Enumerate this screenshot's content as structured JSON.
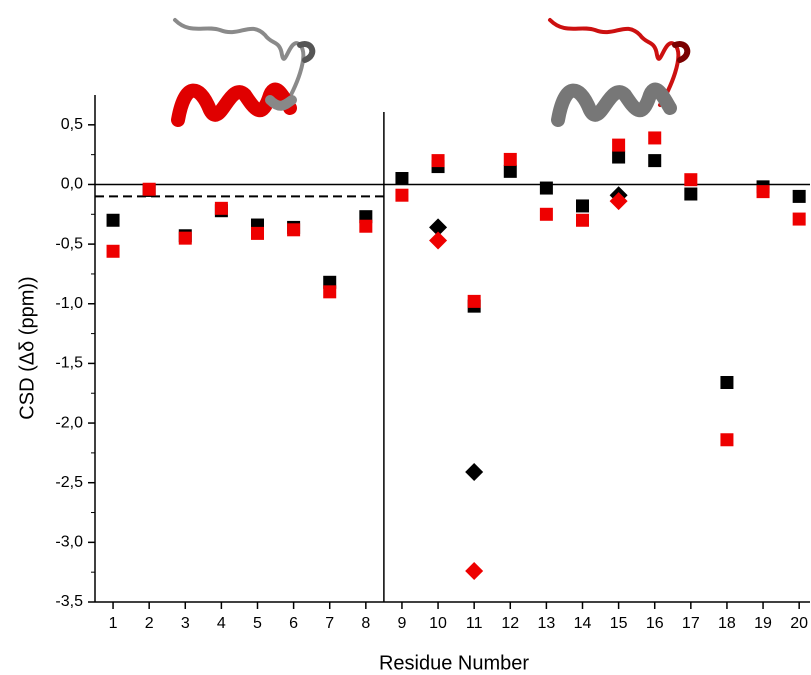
{
  "chart_data": {
    "type": "scatter",
    "x_label": "Residue Number",
    "y_label": "CSD (Δδ (ppm))",
    "x": [
      1,
      2,
      3,
      4,
      5,
      6,
      7,
      8,
      9,
      10,
      11,
      12,
      13,
      14,
      15,
      16,
      17,
      18,
      19,
      20
    ],
    "series": [
      {
        "color": "#000000",
        "marker": "square",
        "values": [
          -0.3,
          -0.05,
          -0.43,
          -0.22,
          -0.34,
          -0.36,
          -0.82,
          -0.27,
          0.05,
          0.15,
          -1.02,
          0.11,
          -0.03,
          -0.18,
          0.23,
          0.2,
          -0.08,
          -1.66,
          -0.02,
          -0.1
        ]
      },
      {
        "color": "#ee0000",
        "marker": "square",
        "values": [
          -0.56,
          -0.04,
          -0.45,
          -0.2,
          -0.41,
          -0.38,
          -0.9,
          -0.35,
          -0.09,
          0.2,
          -0.98,
          0.21,
          -0.25,
          -0.3,
          0.33,
          0.39,
          0.04,
          -2.14,
          -0.06,
          -0.29
        ]
      },
      {
        "color": "#000000",
        "marker": "diamond",
        "values": [
          null,
          null,
          null,
          null,
          null,
          null,
          null,
          null,
          null,
          -0.36,
          -2.41,
          null,
          null,
          null,
          -0.09,
          null,
          null,
          null,
          null,
          null
        ]
      },
      {
        "color": "#ee0000",
        "marker": "diamond",
        "values": [
          null,
          null,
          null,
          null,
          null,
          null,
          null,
          null,
          null,
          -0.47,
          -3.24,
          null,
          null,
          null,
          -0.14,
          null,
          null,
          null,
          null,
          null
        ]
      }
    ],
    "xlim": [
      0.5,
      20.3
    ],
    "xticks": [
      1,
      2,
      3,
      4,
      5,
      6,
      7,
      8,
      9,
      10,
      11,
      12,
      13,
      14,
      15,
      16,
      17,
      18,
      19,
      20
    ],
    "ylim": [
      -3.5,
      0.75
    ],
    "yticks": [
      {
        "value": -3.5,
        "label": "-3,5"
      },
      {
        "value": -3.0,
        "label": "-3,0"
      },
      {
        "value": -2.5,
        "label": "-2,5"
      },
      {
        "value": -2.0,
        "label": "-2,0"
      },
      {
        "value": -1.5,
        "label": "-1,5"
      },
      {
        "value": -1.0,
        "label": "-1,0"
      },
      {
        "value": -0.5,
        "label": "-0,5"
      },
      {
        "value": 0.0,
        "label": "0,0"
      },
      {
        "value": 0.5,
        "label": "0,5"
      }
    ],
    "hline": 0,
    "dashed_hline": -0.1,
    "vline": 8.5
  }
}
